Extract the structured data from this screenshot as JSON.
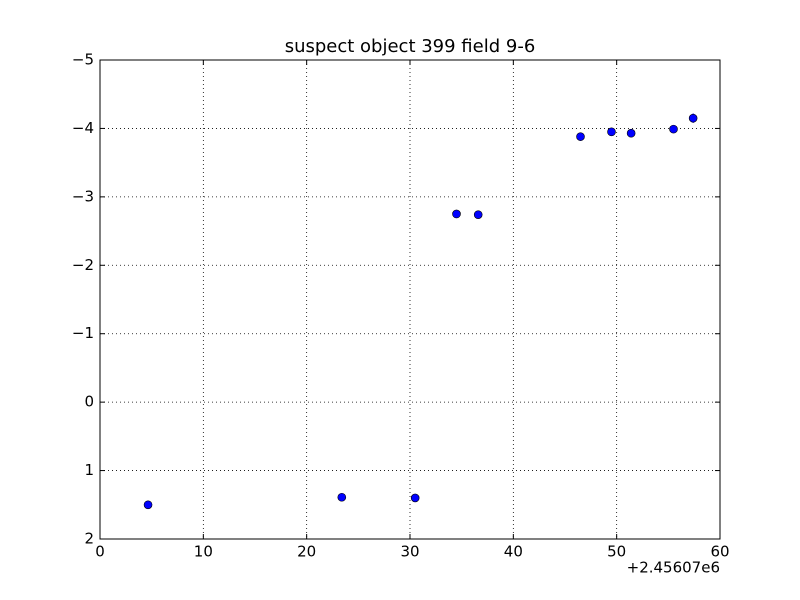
{
  "chart_data": {
    "type": "scatter",
    "title": "suspect object 399 field 9-6",
    "x_offset_label": "+2.45607e6",
    "series": [
      {
        "color": "#0000ff",
        "x": [
          4.65,
          23.4,
          30.5,
          34.5,
          36.6,
          46.5,
          49.5,
          51.4,
          55.5,
          57.4
        ],
        "values": [
          1.5,
          1.39,
          1.4,
          -2.75,
          -2.74,
          -3.88,
          -3.95,
          -3.93,
          -3.99,
          -4.15
        ],
        "errors": [
          0.03,
          0.03,
          0.03,
          0.03,
          0.03,
          0.03,
          0.04,
          0.04,
          0.04,
          0.07
        ]
      }
    ],
    "xlim": [
      0,
      60
    ],
    "xticks": [
      0,
      10,
      20,
      30,
      40,
      50,
      60
    ],
    "ylim": [
      -5,
      2
    ],
    "y_inverted": true,
    "yticks": [
      {
        "value": -5,
        "label": "−5"
      },
      {
        "value": -4,
        "label": "−4"
      },
      {
        "value": -3,
        "label": "−3"
      },
      {
        "value": -2,
        "label": "−2"
      },
      {
        "value": -1,
        "label": "−1"
      },
      0,
      1,
      2
    ],
    "grid": true
  }
}
